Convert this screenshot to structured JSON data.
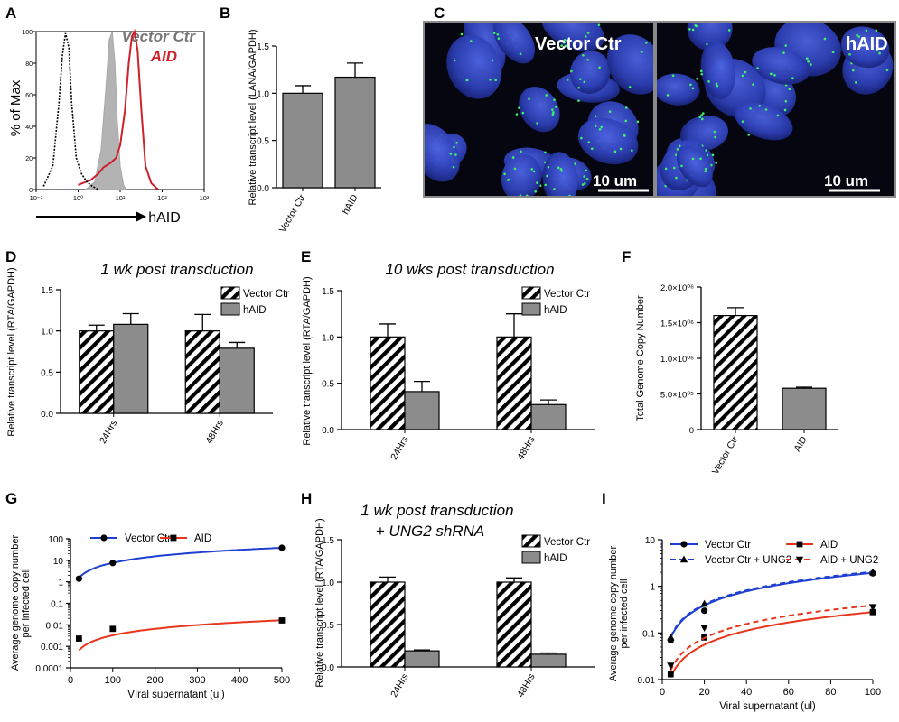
{
  "panels": {
    "A": {
      "letter": "A",
      "ylabel": "% of Max",
      "xlabel": "hAID",
      "legend": [
        "Vector Ctr",
        "AID"
      ],
      "colors": {
        "vector": "#777777",
        "aid": "#d0202a",
        "control": "#000000",
        "filled": "#b3b3b3"
      }
    },
    "B": {
      "letter": "B"
    },
    "C": {
      "letter": "C",
      "labels": [
        "Vector Ctr",
        "hAID"
      ],
      "scalebar": "10 um"
    },
    "D": {
      "letter": "D",
      "title": "1 wk post transduction"
    },
    "E": {
      "letter": "E",
      "title": "10 wks post transduction"
    },
    "F": {
      "letter": "F"
    },
    "G": {
      "letter": "G"
    },
    "H": {
      "letter": "H",
      "title": [
        "1 wk post transduction",
        "+ UNG2 shRNA"
      ]
    },
    "I": {
      "letter": "I"
    }
  },
  "chart_data": [
    {
      "id": "A",
      "type": "line",
      "xlabel": "hAID",
      "ylabel": "% of Max",
      "xscale": "log",
      "xlim": [
        0.1,
        1000
      ],
      "ylim": [
        0,
        100
      ],
      "xticks": [
        "10⁻¹",
        "10⁰",
        "10¹",
        "10²",
        "10³"
      ],
      "yticks": [
        "0",
        "20",
        "40",
        "60",
        "80",
        "100"
      ],
      "series": [
        {
          "name": "Vector Ctr",
          "style": "filled",
          "x": [
            1.5,
            2.5,
            3.5,
            4.5,
            5.5,
            6.5,
            7.5,
            8.5,
            10,
            12,
            14
          ],
          "y": [
            0,
            5,
            25,
            62,
            95,
            100,
            80,
            45,
            15,
            3,
            0
          ]
        },
        {
          "name": "AID",
          "style": "solid-red",
          "x": [
            1,
            2,
            3,
            4,
            6,
            8,
            10,
            13,
            16,
            19,
            22,
            26,
            32,
            40,
            55,
            80
          ],
          "y": [
            3,
            6,
            10,
            14,
            17,
            20,
            28,
            50,
            80,
            97,
            100,
            88,
            50,
            15,
            4,
            0
          ]
        },
        {
          "name": "",
          "style": "dotted",
          "x": [
            0.15,
            0.25,
            0.35,
            0.42,
            0.5,
            0.6,
            0.7,
            0.9,
            1.2,
            1.6,
            2.2,
            3
          ],
          "y": [
            2,
            15,
            55,
            85,
            99,
            90,
            55,
            20,
            10,
            5,
            2,
            0
          ]
        }
      ]
    },
    {
      "id": "B",
      "type": "bar",
      "ylabel": "Relative transcript level (LANA/GAPDH)",
      "ylim": [
        0,
        1.5
      ],
      "yticks": [
        "0.0",
        "0.5",
        "1.0",
        "1.5"
      ],
      "categories": [
        "Vector Ctr",
        "hAID"
      ],
      "values": [
        1.0,
        1.17
      ],
      "errors": [
        0.08,
        0.15
      ]
    },
    {
      "id": "D",
      "type": "bar",
      "title": "1 wk post transduction",
      "ylabel": "Relative transcript level (RTA/GAPDH)",
      "ylim": [
        0,
        1.5
      ],
      "yticks": [
        "0.0",
        "0.5",
        "1.0",
        "1.5"
      ],
      "categories": [
        "24Hrs",
        "48Hrs"
      ],
      "series": [
        {
          "name": "Vector Ctr",
          "pattern": "hatched",
          "values": [
            1.0,
            1.0
          ],
          "errors": [
            0.07,
            0.2
          ]
        },
        {
          "name": "hAID",
          "pattern": "gray",
          "values": [
            1.08,
            0.79
          ],
          "errors": [
            0.13,
            0.07
          ]
        }
      ]
    },
    {
      "id": "E",
      "type": "bar",
      "title": "10 wks post transduction",
      "ylabel": "Relative transcript level (RTA/GAPDH)",
      "ylim": [
        0,
        1.5
      ],
      "yticks": [
        "0.0",
        "0.5",
        "1.0",
        "1.5"
      ],
      "categories": [
        "24Hrs",
        "48Hrs"
      ],
      "series": [
        {
          "name": "Vector Ctr",
          "pattern": "hatched",
          "values": [
            1.0,
            1.0
          ],
          "errors": [
            0.14,
            0.25
          ]
        },
        {
          "name": "hAID",
          "pattern": "gray",
          "values": [
            0.41,
            0.27
          ],
          "errors": [
            0.11,
            0.05
          ]
        }
      ]
    },
    {
      "id": "F",
      "type": "bar",
      "ylabel": "Total Genome Copy Number",
      "ylim": [
        0,
        2000000
      ],
      "yticks": [
        "0",
        "5.0×10⁰⁵",
        "1.0×10⁰⁶",
        "1.5×10⁰⁶",
        "2.0×10⁰⁶"
      ],
      "categories": [
        "Vector Ctr",
        "AID"
      ],
      "patterns": [
        "hatched",
        "gray"
      ],
      "values": [
        1600000,
        580000
      ],
      "errors": [
        110000,
        15000
      ]
    },
    {
      "id": "G",
      "type": "scatter",
      "xlabel": "VIral supernatant (ul)",
      "ylabel": "Average genome copy number per infected cell",
      "xlim": [
        0,
        500
      ],
      "yscale": "log",
      "ylim": [
        0.0001,
        100
      ],
      "xticks": [
        "0",
        "100",
        "200",
        "300",
        "400",
        "500"
      ],
      "yticks": [
        "0.0001",
        "0.001",
        "0.01",
        "0.1",
        "1",
        "10",
        "100"
      ],
      "series": [
        {
          "name": "Vector Ctr",
          "color": "#1f3fd1",
          "marker": "circle",
          "x": [
            20,
            100,
            500
          ],
          "y": [
            1.4,
            7.5,
            38
          ],
          "fit": {
            "a": 0.0765,
            "b": 1
          }
        },
        {
          "name": "AID",
          "color": "#e8361c",
          "marker": "square",
          "x": [
            20,
            100,
            500
          ],
          "y": [
            0.0023,
            0.0065,
            0.016
          ],
          "fit": {
            "a": 3.26e-05,
            "b": 1
          }
        }
      ]
    },
    {
      "id": "H",
      "type": "bar",
      "title": "1 wk post transduction + UNG2 shRNA",
      "ylabel": "Relative transcript level (RTA/GAPDH)",
      "ylim": [
        0,
        1.5
      ],
      "yticks": [
        "0.0",
        "0.5",
        "1.0",
        "1.5"
      ],
      "categories": [
        "24Hrs",
        "48Hrs"
      ],
      "series": [
        {
          "name": "Vector Ctr",
          "pattern": "hatched",
          "values": [
            1.0,
            1.0
          ],
          "errors": [
            0.06,
            0.05
          ]
        },
        {
          "name": "hAID",
          "pattern": "gray",
          "values": [
            0.19,
            0.15
          ],
          "errors": [
            0.01,
            0.015
          ]
        }
      ]
    },
    {
      "id": "I",
      "type": "scatter",
      "xlabel": "Viral supernatant (ul)",
      "ylabel": "Average genome copy number per infected cell",
      "xlim": [
        0,
        100
      ],
      "yscale": "log",
      "ylim": [
        0.01,
        10
      ],
      "xticks": [
        "0",
        "20",
        "40",
        "60",
        "80",
        "100"
      ],
      "yticks": [
        "0.01",
        "0.1",
        "1",
        "10"
      ],
      "series": [
        {
          "name": "Vector Ctr",
          "color": "#1f3fd1",
          "marker": "circle",
          "line": "solid",
          "x": [
            4,
            20,
            100
          ],
          "y": [
            0.07,
            0.3,
            1.9
          ],
          "fit": {
            "a": 0.0195,
            "b": 1
          }
        },
        {
          "name": "Vector  Ctr + UNG2",
          "color": "#1f3fd1",
          "marker": "triangle-up",
          "line": "dashed",
          "x": [
            4,
            20,
            100
          ],
          "y": [
            0.08,
            0.42,
            2.0
          ],
          "fit": {
            "a": 0.0205,
            "b": 1
          }
        },
        {
          "name": "AID",
          "color": "#e8361c",
          "marker": "square",
          "line": "solid",
          "x": [
            4,
            20,
            100
          ],
          "y": [
            0.013,
            0.08,
            0.28
          ],
          "fit": {
            "a": 0.0028,
            "b": 1
          }
        },
        {
          "name": "AID + UNG2",
          "color": "#e8361c",
          "marker": "triangle-down",
          "line": "dashed",
          "x": [
            4,
            20,
            100
          ],
          "y": [
            0.02,
            0.13,
            0.36
          ],
          "fit": {
            "a": 0.0039,
            "b": 1
          }
        }
      ]
    }
  ]
}
